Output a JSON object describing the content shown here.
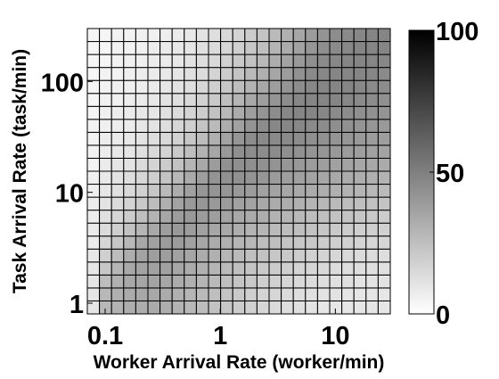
{
  "chart_data": {
    "type": "heatmap",
    "title": "",
    "xlabel": "Worker Arrival Rate (worker/min)",
    "ylabel": "Task Arrival Rate (task/min)",
    "x_scale": "log",
    "y_scale": "log",
    "xlim": [
      0.07,
      30
    ],
    "ylim": [
      0.8,
      300
    ],
    "x_ticks": [
      0.1,
      1,
      10
    ],
    "x_tick_labels": [
      "0.1",
      "1",
      "10"
    ],
    "y_ticks": [
      1,
      10,
      100
    ],
    "y_tick_labels": [
      "1",
      "10",
      "100"
    ],
    "grid": true,
    "n_cols": 25,
    "n_rows": 22,
    "row_order": "bottom-to-top",
    "colormap": "gray_r",
    "colorbar": {
      "min": 0,
      "max": 100,
      "ticks": [
        0,
        50,
        100
      ],
      "tick_labels": [
        "0",
        "50",
        "100"
      ]
    },
    "values": [
      [
        10,
        28,
        30,
        32,
        32,
        33,
        32,
        30,
        28,
        26,
        24,
        22,
        20,
        18,
        16,
        14,
        13,
        12,
        11,
        10,
        10,
        10,
        10,
        10,
        10
      ],
      [
        10,
        28,
        31,
        33,
        34,
        34,
        33,
        31,
        29,
        27,
        25,
        23,
        21,
        19,
        17,
        16,
        14,
        13,
        12,
        11,
        11,
        10,
        10,
        10,
        10
      ],
      [
        10,
        26,
        31,
        34,
        35,
        36,
        35,
        33,
        31,
        29,
        27,
        25,
        23,
        21,
        19,
        18,
        16,
        15,
        14,
        13,
        12,
        12,
        11,
        11,
        11
      ],
      [
        10,
        22,
        29,
        34,
        36,
        37,
        37,
        35,
        33,
        31,
        29,
        27,
        25,
        23,
        21,
        20,
        19,
        17,
        16,
        15,
        14,
        13,
        13,
        12,
        12
      ],
      [
        9,
        19,
        26,
        32,
        36,
        38,
        38,
        37,
        35,
        33,
        31,
        29,
        27,
        25,
        24,
        22,
        21,
        20,
        18,
        17,
        16,
        15,
        14,
        14,
        13
      ],
      [
        8,
        16,
        22,
        28,
        34,
        37,
        39,
        39,
        37,
        35,
        33,
        31,
        29,
        28,
        26,
        25,
        23,
        22,
        21,
        20,
        19,
        18,
        17,
        16,
        16
      ],
      [
        8,
        14,
        19,
        24,
        29,
        34,
        38,
        40,
        39,
        37,
        35,
        34,
        32,
        30,
        29,
        27,
        26,
        25,
        24,
        22,
        21,
        20,
        19,
        19,
        18
      ],
      [
        7,
        12,
        16,
        20,
        25,
        30,
        35,
        39,
        40,
        39,
        38,
        36,
        34,
        33,
        32,
        30,
        29,
        28,
        26,
        25,
        24,
        23,
        22,
        21,
        20
      ],
      [
        7,
        11,
        14,
        17,
        21,
        26,
        31,
        36,
        40,
        41,
        40,
        39,
        37,
        36,
        34,
        33,
        32,
        31,
        29,
        28,
        27,
        26,
        25,
        24,
        23
      ],
      [
        6,
        10,
        12,
        15,
        18,
        22,
        27,
        32,
        37,
        41,
        42,
        41,
        40,
        39,
        37,
        36,
        35,
        34,
        33,
        32,
        31,
        30,
        29,
        28,
        27
      ],
      [
        6,
        9,
        11,
        13,
        16,
        19,
        23,
        28,
        33,
        38,
        42,
        43,
        43,
        42,
        41,
        39,
        38,
        37,
        36,
        35,
        34,
        33,
        32,
        31,
        30
      ],
      [
        5,
        8,
        10,
        11,
        14,
        17,
        20,
        24,
        29,
        34,
        39,
        43,
        44,
        44,
        43,
        42,
        41,
        40,
        39,
        38,
        37,
        36,
        35,
        34,
        33
      ],
      [
        5,
        7,
        9,
        10,
        12,
        15,
        17,
        21,
        25,
        30,
        35,
        40,
        44,
        45,
        45,
        45,
        44,
        43,
        42,
        41,
        40,
        39,
        38,
        37,
        36
      ],
      [
        5,
        7,
        8,
        9,
        11,
        13,
        15,
        18,
        22,
        26,
        31,
        36,
        41,
        45,
        46,
        46,
        46,
        45,
        44,
        43,
        42,
        41,
        40,
        39,
        38
      ],
      [
        5,
        6,
        7,
        8,
        10,
        11,
        13,
        16,
        19,
        23,
        27,
        32,
        37,
        42,
        45,
        47,
        47,
        47,
        46,
        45,
        44,
        43,
        42,
        41,
        40
      ],
      [
        4,
        6,
        7,
        8,
        9,
        10,
        12,
        14,
        17,
        20,
        24,
        28,
        33,
        38,
        42,
        45,
        47,
        48,
        48,
        47,
        46,
        45,
        44,
        43,
        42
      ],
      [
        4,
        5,
        6,
        7,
        8,
        9,
        11,
        12,
        15,
        18,
        21,
        25,
        29,
        34,
        38,
        42,
        45,
        47,
        48,
        48,
        48,
        47,
        46,
        45,
        44
      ],
      [
        4,
        5,
        6,
        6,
        7,
        8,
        10,
        11,
        13,
        16,
        19,
        22,
        26,
        30,
        34,
        38,
        42,
        45,
        47,
        48,
        48,
        48,
        47,
        46,
        45
      ],
      [
        4,
        5,
        5,
        6,
        7,
        8,
        9,
        10,
        12,
        14,
        17,
        20,
        23,
        27,
        31,
        35,
        39,
        43,
        46,
        47,
        48,
        48,
        48,
        47,
        46
      ],
      [
        4,
        4,
        5,
        6,
        6,
        7,
        8,
        9,
        11,
        13,
        15,
        18,
        21,
        24,
        28,
        32,
        36,
        40,
        44,
        46,
        47,
        48,
        48,
        48,
        47
      ],
      [
        4,
        4,
        5,
        5,
        6,
        7,
        8,
        9,
        10,
        12,
        14,
        16,
        19,
        22,
        25,
        29,
        33,
        37,
        41,
        44,
        46,
        47,
        48,
        48,
        48
      ],
      [
        4,
        4,
        5,
        5,
        6,
        6,
        7,
        8,
        9,
        11,
        13,
        15,
        17,
        20,
        23,
        27,
        31,
        35,
        39,
        42,
        45,
        46,
        47,
        48,
        48
      ]
    ]
  }
}
